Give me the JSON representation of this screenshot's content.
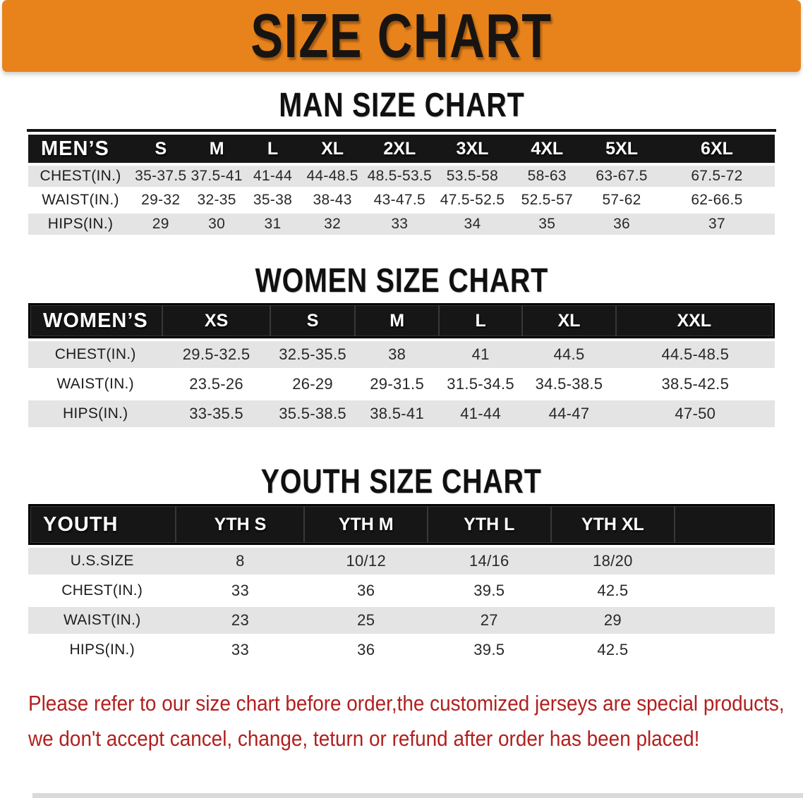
{
  "banner": {
    "title": "SIZE CHART",
    "bg_color": "#e8831c",
    "text_color": "#181411"
  },
  "colors": {
    "header_bg": "#161616",
    "row_alt_bg": "#e4e4e4",
    "accent_orange": "#e8831c",
    "footer_red": "#b1201f"
  },
  "footer": {
    "text_color": "#b1201f",
    "lines": [
      "Please refer to our size chart before order,the customized jerseys are special products,",
      "we don't accept cancel, change, teturn or refund after order has been placed!"
    ]
  },
  "chart_data": [
    {
      "type": "table",
      "title": "MAN SIZE CHART",
      "header_label": "MEN’S",
      "columns": [
        "S",
        "M",
        "L",
        "XL",
        "2XL",
        "3XL",
        "4XL",
        "5XL",
        "6XL"
      ],
      "rows": [
        {
          "label": "CHEST(IN.)",
          "values": [
            "35-37.5",
            "37.5-41",
            "41-44",
            "44-48.5",
            "48.5-53.5",
            "53.5-58",
            "58-63",
            "63-67.5",
            "67.5-72"
          ]
        },
        {
          "label": "WAIST(IN.)",
          "values": [
            "29-32",
            "32-35",
            "35-38",
            "38-43",
            "43-47.5",
            "47.5-52.5",
            "52.5-57",
            "57-62",
            "62-66.5"
          ]
        },
        {
          "label": "HIPS(IN.)",
          "values": [
            "29",
            "30",
            "31",
            "32",
            "33",
            "34",
            "35",
            "36",
            "37"
          ]
        }
      ],
      "col_widths_pct": [
        14,
        7.5,
        7.5,
        7.5,
        8.5,
        9.5,
        10,
        10,
        10,
        15.5
      ]
    },
    {
      "type": "table",
      "title": "WOMEN SIZE CHART",
      "header_label": "WOMEN’S",
      "columns": [
        "XS",
        "S",
        "M",
        "L",
        "XL",
        "XXL"
      ],
      "rows": [
        {
          "label": "CHEST(IN.)",
          "values": [
            "29.5-32.5",
            "32.5-35.5",
            "38",
            "41",
            "44.5",
            "44.5-48.5"
          ]
        },
        {
          "label": "WAIST(IN.)",
          "values": [
            "23.5-26",
            "26-29",
            "29-31.5",
            "31.5-34.5",
            "34.5-38.5",
            "38.5-42.5"
          ]
        },
        {
          "label": "HIPS(IN.)",
          "values": [
            "33-35.5",
            "35.5-38.5",
            "38.5-41",
            "41-44",
            "44-47",
            "47-50"
          ]
        }
      ],
      "col_widths_pct": [
        18,
        14.4,
        11.4,
        11.2,
        11.2,
        12.5,
        21.3
      ]
    },
    {
      "type": "table",
      "title": "YOUTH SIZE CHART",
      "header_label": "YOUTH",
      "columns": [
        "YTH S",
        "YTH M",
        "YTH L",
        "YTH XL"
      ],
      "rows": [
        {
          "label": "U.S.SIZE",
          "values": [
            "8",
            "10/12",
            "14/16",
            "18/20"
          ]
        },
        {
          "label": "CHEST(IN.)",
          "values": [
            "33",
            "36",
            "39.5",
            "42.5"
          ]
        },
        {
          "label": "WAIST(IN.)",
          "values": [
            "23",
            "25",
            "27",
            "29"
          ]
        },
        {
          "label": "HIPS(IN.)",
          "values": [
            "33",
            "36",
            "39.5",
            "42.5"
          ]
        }
      ],
      "col_widths_pct": [
        19.8,
        17.2,
        16.5,
        16.5,
        16.6,
        13.4
      ]
    }
  ]
}
